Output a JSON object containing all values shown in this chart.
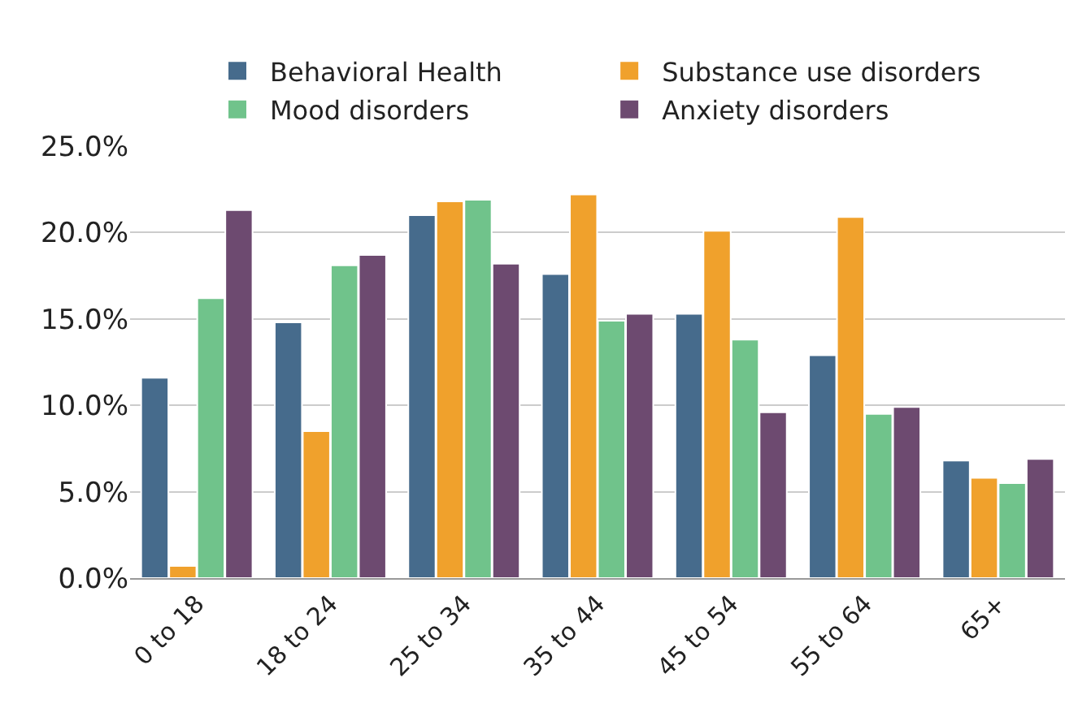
{
  "chart_data": {
    "type": "bar",
    "categories": [
      "0 to 18",
      "18 to 24",
      "25 to 34",
      "35 to 44",
      "45 to 54",
      "55 to 64",
      "65+"
    ],
    "series": [
      {
        "name": "Behavioral Health",
        "color": "#466b8c",
        "values": [
          11.6,
          14.8,
          21.0,
          17.6,
          15.3,
          12.9,
          6.8
        ]
      },
      {
        "name": "Substance use disorders",
        "color": "#f0a12c",
        "values": [
          0.7,
          8.5,
          21.8,
          22.2,
          20.1,
          20.9,
          5.8
        ]
      },
      {
        "name": "Mood disorders",
        "color": "#70c38b",
        "values": [
          16.2,
          18.1,
          21.9,
          14.9,
          13.8,
          9.5,
          5.5
        ]
      },
      {
        "name": "Anxiety disorders",
        "color": "#6d4a70",
        "values": [
          21.3,
          18.7,
          18.2,
          15.3,
          9.6,
          9.9,
          6.9
        ]
      }
    ],
    "ylim": [
      0,
      25
    ],
    "yticks": [
      {
        "value": 0,
        "label": "0.0%"
      },
      {
        "value": 5,
        "label": "5.0%"
      },
      {
        "value": 10,
        "label": "10.0%"
      },
      {
        "value": 15,
        "label": "15.0%"
      },
      {
        "value": 20,
        "label": "20.0%"
      },
      {
        "value": 25,
        "label": "25.0%"
      }
    ],
    "grid": "y",
    "legend": "top"
  }
}
